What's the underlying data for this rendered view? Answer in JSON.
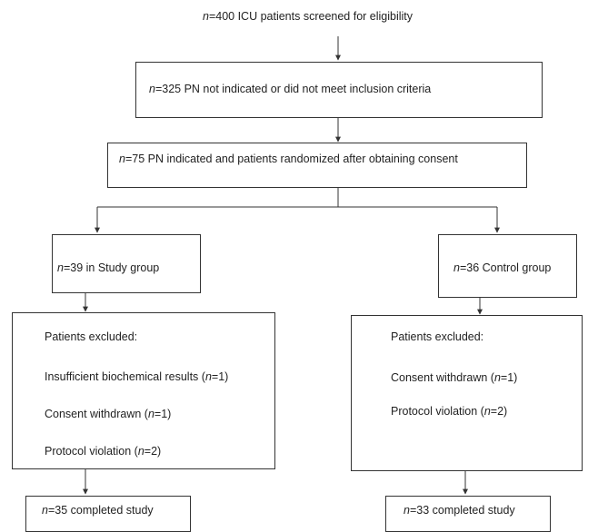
{
  "n_symbol": "n",
  "screened": {
    "value": "=400 ICU patients screened for eligibility"
  },
  "not_indicated": {
    "value": "=325 PN not indicated or did not meet inclusion criteria"
  },
  "randomized": {
    "value": "=75 PN indicated and patients randomized after obtaining consent"
  },
  "study_group": {
    "value": "=39 in Study group"
  },
  "control_group": {
    "value": "=36 Control group"
  },
  "study_excluded": {
    "title": "Patients excluded:",
    "items": [
      {
        "pre": "Insufficient biochemical results (",
        "post": "=1)"
      },
      {
        "pre": "Consent withdrawn (",
        "post": "=1)"
      },
      {
        "pre": "Protocol violation (",
        "post": "=2)"
      }
    ]
  },
  "control_excluded": {
    "title": "Patients excluded:",
    "items": [
      {
        "pre": "Consent withdrawn (",
        "post": "=1)"
      },
      {
        "pre": "Protocol violation (",
        "post": "=2)"
      }
    ]
  },
  "study_completed": {
    "value": "=35 completed study"
  },
  "control_completed": {
    "value": "=33 completed study"
  }
}
